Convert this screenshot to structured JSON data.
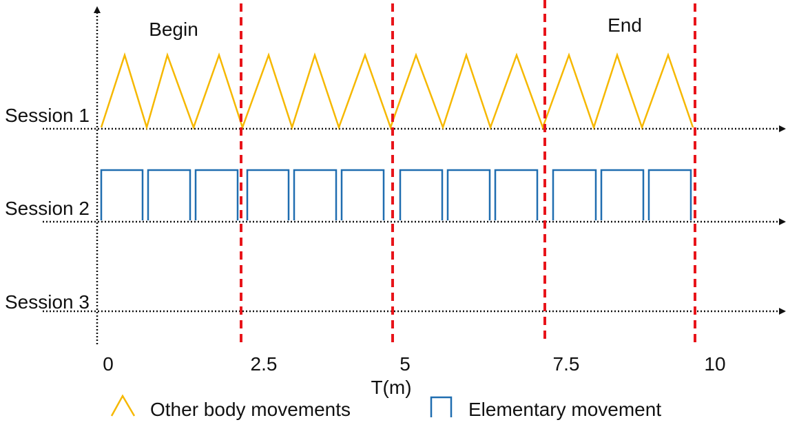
{
  "labels": {
    "begin": "Begin",
    "end": "End",
    "x_axis_title": "T(m)"
  },
  "sessions": [
    {
      "label": "Session 1",
      "pattern": "triangle"
    },
    {
      "label": "Session 2",
      "pattern": "square"
    },
    {
      "label": "Session 3",
      "pattern": "none"
    }
  ],
  "ticks": [
    "0",
    "2.5",
    "5",
    "7.5",
    "10"
  ],
  "legend": [
    {
      "label": "Other body movements",
      "icon": "triangle-wave-icon",
      "color": "#F6B800"
    },
    {
      "label": "Elementary movement",
      "icon": "square-wave-icon",
      "color": "#1F6DB0"
    }
  ],
  "colors": {
    "triangle": "#F6B800",
    "square": "#1F6DB0",
    "boundary": "#E8141A",
    "axis": "#111111"
  },
  "pattern_counts": {
    "triangle_peaks_per_segment": [
      3,
      3,
      3,
      3
    ],
    "square_pulses_per_segment": [
      3,
      3,
      3,
      3
    ]
  }
}
